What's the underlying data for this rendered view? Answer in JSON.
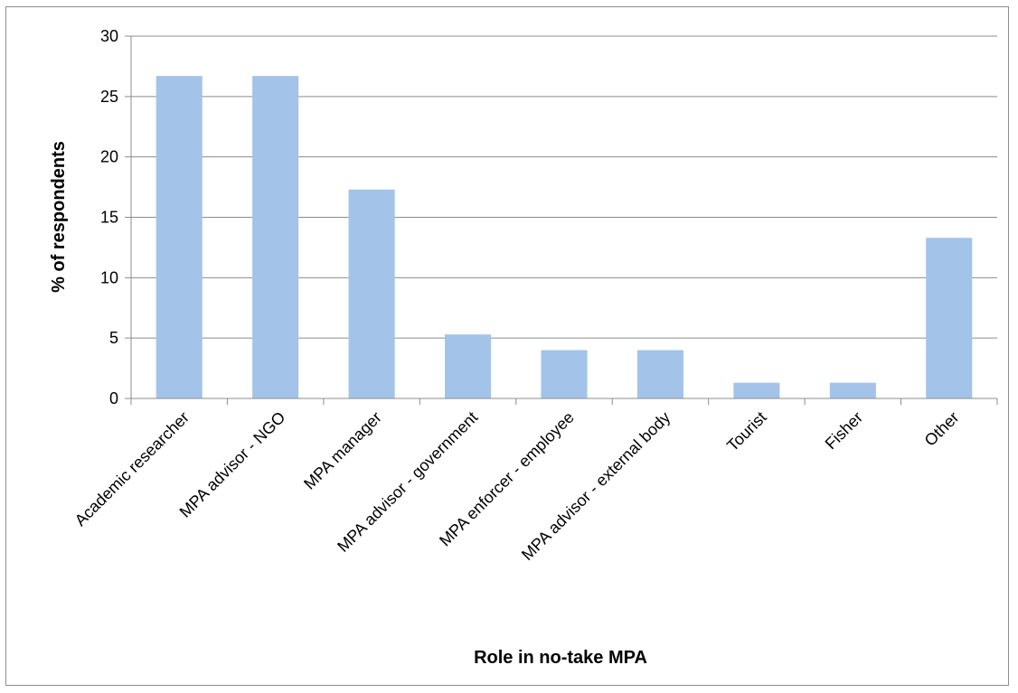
{
  "chart_data": {
    "type": "bar",
    "categories": [
      "Academic researcher",
      "MPA advisor - NGO",
      "MPA manager",
      "MPA advisor - government",
      "MPA enforcer - employee",
      "MPA advisor - external body",
      "Tourist",
      "Fisher",
      "Other"
    ],
    "values": [
      26.7,
      26.7,
      17.3,
      5.3,
      4.0,
      4.0,
      1.3,
      1.3,
      13.3
    ],
    "ylim": [
      0,
      30
    ],
    "yticks": [
      0,
      5,
      10,
      15,
      20,
      25,
      30
    ],
    "xlabel": "Role in no-take MPA",
    "ylabel": "% of respondents",
    "grid": true,
    "legend": "none",
    "bar_color": "#a3c3e8",
    "grid_color": "#8c8c8c"
  }
}
